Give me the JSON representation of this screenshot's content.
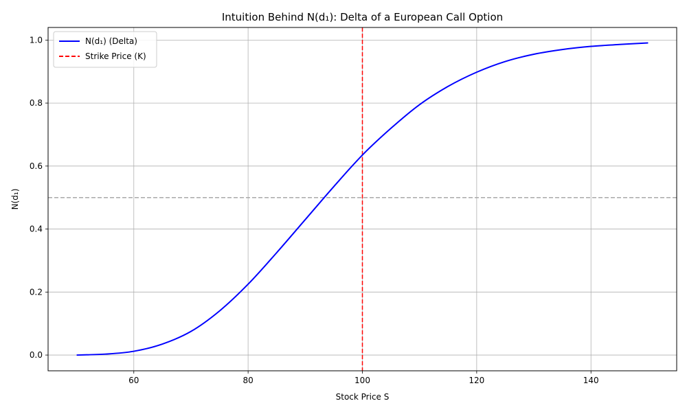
{
  "chart_data": {
    "type": "line",
    "title": "Intuition Behind N(d₁): Delta of a European Call Option",
    "xlabel": "Stock Price S",
    "ylabel": "N(d₁)",
    "xlim": [
      45,
      155
    ],
    "ylim": [
      -0.05,
      1.04
    ],
    "xticks": [
      60,
      80,
      100,
      120,
      140
    ],
    "xtick_labels": [
      "60",
      "80",
      "100",
      "120",
      "140"
    ],
    "yticks": [
      0.0,
      0.2,
      0.4,
      0.6,
      0.8,
      1.0
    ],
    "ytick_labels": [
      "0.0",
      "0.2",
      "0.4",
      "0.6",
      "0.8",
      "1.0"
    ],
    "grid": true,
    "legend_position": "top-left",
    "series": [
      {
        "name": "N(d₁) (Delta)",
        "color": "#0000ff",
        "style": "solid",
        "x": [
          50,
          55,
          60,
          65,
          70,
          75,
          80,
          85,
          90,
          95,
          100,
          105,
          110,
          115,
          120,
          125,
          130,
          135,
          140,
          145,
          150
        ],
        "y": [
          0.0,
          0.003,
          0.012,
          0.035,
          0.075,
          0.14,
          0.225,
          0.325,
          0.43,
          0.535,
          0.635,
          0.72,
          0.795,
          0.853,
          0.898,
          0.932,
          0.955,
          0.97,
          0.98,
          0.986,
          0.991
        ]
      }
    ],
    "reference_lines": [
      {
        "name": "Strike Price (K)",
        "orientation": "vertical",
        "value": 100,
        "color": "#ff0000",
        "style": "dashed",
        "in_legend": true
      },
      {
        "name": "",
        "orientation": "horizontal",
        "value": 0.5,
        "color": "#a9a9a9",
        "style": "dashed",
        "in_legend": false
      }
    ]
  }
}
